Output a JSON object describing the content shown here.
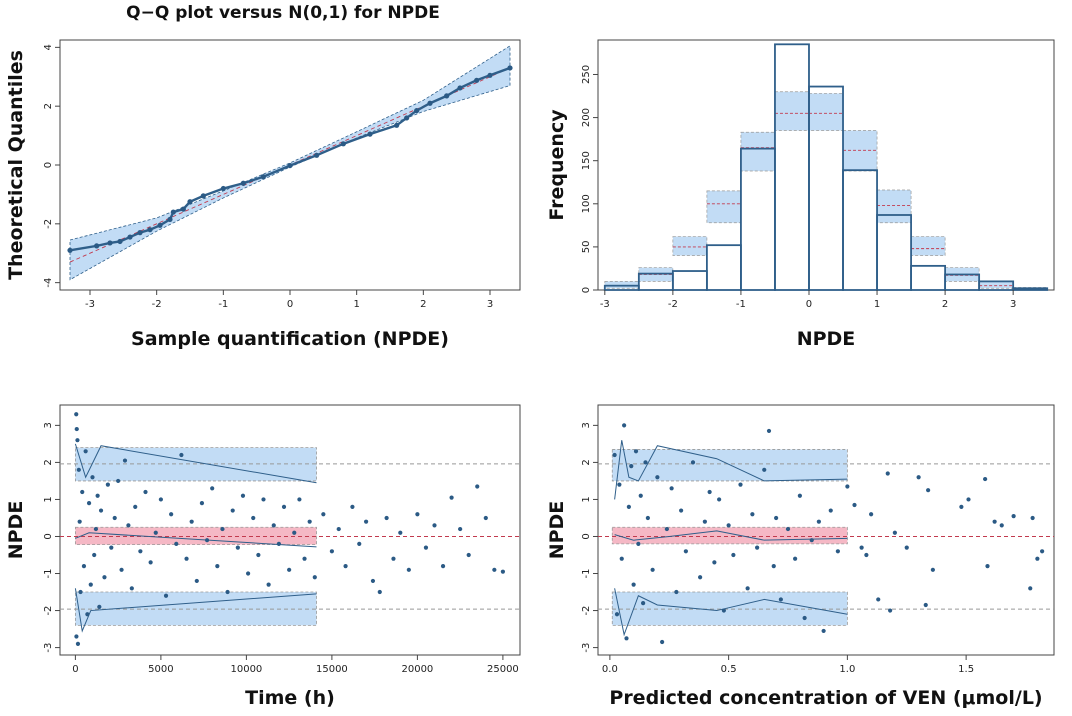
{
  "colors": {
    "point": "#2b5a85",
    "line": "#2f5f8a",
    "band_blue": "#c2dcf5",
    "band_red": "#f5b8c5",
    "dash_red": "#c23a4e",
    "grid": "#999999"
  },
  "chart_data": [
    {
      "id": "qq",
      "type": "scatter",
      "title": "Q−Q plot versus N(0,1) for NPDE",
      "xlabel": "Sample quantification (NPDE)",
      "ylabel": "Theoretical Quantiles",
      "xlim": [
        -3.45,
        3.45
      ],
      "ylim": [
        -4.25,
        4.25
      ],
      "xticks": [
        -3,
        -2,
        -1,
        0,
        1,
        2,
        3
      ],
      "yticks": [
        -4,
        -2,
        0,
        2,
        4
      ],
      "band": {
        "x": [
          -3.3,
          -2.0,
          -1.0,
          0.0,
          1.0,
          2.0,
          3.3
        ],
        "lower": [
          -3.9,
          -2.25,
          -1.12,
          -0.07,
          0.92,
          1.82,
          2.7
        ],
        "upper": [
          -2.55,
          -1.8,
          -0.88,
          0.07,
          1.13,
          2.2,
          4.05
        ]
      },
      "points": [
        [
          -3.3,
          -2.9
        ],
        [
          -2.9,
          -2.75
        ],
        [
          -2.7,
          -2.65
        ],
        [
          -2.55,
          -2.6
        ],
        [
          -2.4,
          -2.45
        ],
        [
          -2.25,
          -2.3
        ],
        [
          -2.1,
          -2.2
        ],
        [
          -1.95,
          -2.05
        ],
        [
          -1.8,
          -1.85
        ],
        [
          -1.75,
          -1.6
        ],
        [
          -1.6,
          -1.5
        ],
        [
          -1.5,
          -1.25
        ],
        [
          -1.3,
          -1.05
        ],
        [
          -1.0,
          -0.8
        ],
        [
          -0.7,
          -0.62
        ],
        [
          -0.4,
          -0.4
        ],
        [
          0.0,
          -0.02
        ],
        [
          0.4,
          0.33
        ],
        [
          0.8,
          0.72
        ],
        [
          1.2,
          1.05
        ],
        [
          1.6,
          1.35
        ],
        [
          1.75,
          1.6
        ],
        [
          1.9,
          1.85
        ],
        [
          2.1,
          2.1
        ],
        [
          2.35,
          2.35
        ],
        [
          2.55,
          2.62
        ],
        [
          2.8,
          2.88
        ],
        [
          3.0,
          3.05
        ],
        [
          3.3,
          3.3
        ]
      ]
    },
    {
      "id": "hist",
      "type": "bar",
      "xlabel": "NPDE",
      "ylabel": "Frequency",
      "xlim": [
        -3.1,
        3.6
      ],
      "ylim": [
        0,
        290
      ],
      "xticks": [
        -3,
        -2,
        -1,
        0,
        1,
        2,
        3
      ],
      "yticks": [
        0,
        50,
        100,
        150,
        200,
        250
      ],
      "bin_edges": [
        -3,
        -2.5,
        -2,
        -1.5,
        -1,
        -0.5,
        0,
        0.5,
        1,
        1.5,
        2,
        2.5,
        3,
        3.5
      ],
      "observed": [
        5,
        19,
        22,
        52,
        164,
        285,
        236,
        139,
        87,
        28,
        18,
        10,
        2
      ],
      "pi_lower": [
        2,
        10,
        40,
        78,
        138,
        185,
        185,
        138,
        78,
        40,
        10,
        2,
        0
      ],
      "pi_median": [
        5,
        18,
        50,
        100,
        165,
        205,
        205,
        162,
        98,
        48,
        17,
        5,
        1
      ],
      "pi_upper": [
        10,
        26,
        62,
        115,
        183,
        230,
        228,
        185,
        116,
        62,
        26,
        10,
        3
      ]
    },
    {
      "id": "time",
      "type": "scatter",
      "xlabel": "Time (h)",
      "ylabel": "NPDE",
      "xlim": [
        -900,
        26000
      ],
      "ylim": [
        -3.2,
        3.55
      ],
      "xticks": [
        0,
        5000,
        10000,
        15000,
        20000,
        25000
      ],
      "yticks": [
        -3,
        -2,
        -1,
        0,
        1,
        2,
        3
      ],
      "ref_lines": [
        -1.96,
        0,
        1.96
      ],
      "bands": [
        {
          "color": "blue",
          "x": [
            0,
            14100
          ],
          "lower": [
            1.5,
            1.5
          ],
          "upper": [
            2.4,
            2.4
          ]
        },
        {
          "color": "red",
          "x": [
            0,
            14100
          ],
          "lower": [
            -0.22,
            -0.22
          ],
          "upper": [
            0.25,
            0.25
          ]
        },
        {
          "color": "blue",
          "x": [
            0,
            14100
          ],
          "lower": [
            -2.4,
            -2.4
          ],
          "upper": [
            -1.5,
            -1.5
          ]
        }
      ],
      "median_lines": [
        {
          "x": [
            0,
            600,
            1500,
            14100
          ],
          "y": [
            2.5,
            1.6,
            2.45,
            1.45
          ]
        },
        {
          "x": [
            0,
            800,
            14100
          ],
          "y": [
            -0.05,
            0.1,
            -0.28
          ]
        },
        {
          "x": [
            0,
            400,
            900,
            14100
          ],
          "y": [
            -1.4,
            -2.55,
            -2.0,
            -1.55
          ]
        }
      ],
      "points": [
        [
          50,
          3.3
        ],
        [
          80,
          2.9
        ],
        [
          120,
          2.6
        ],
        [
          150,
          -2.9
        ],
        [
          60,
          -2.7
        ],
        [
          200,
          1.8
        ],
        [
          300,
          -1.5
        ],
        [
          250,
          0.4
        ],
        [
          400,
          1.2
        ],
        [
          500,
          -0.8
        ],
        [
          600,
          2.3
        ],
        [
          700,
          -2.1
        ],
        [
          800,
          0.9
        ],
        [
          900,
          -1.3
        ],
        [
          1000,
          1.6
        ],
        [
          1100,
          -0.5
        ],
        [
          1200,
          0.2
        ],
        [
          1300,
          1.1
        ],
        [
          1400,
          -1.9
        ],
        [
          1500,
          0.7
        ],
        [
          1700,
          -1.1
        ],
        [
          1900,
          1.4
        ],
        [
          2100,
          -0.3
        ],
        [
          2300,
          0.5
        ],
        [
          2500,
          1.5
        ],
        [
          2700,
          -0.9
        ],
        [
          2900,
          2.05
        ],
        [
          3100,
          0.3
        ],
        [
          3300,
          -1.4
        ],
        [
          3500,
          0.8
        ],
        [
          3800,
          -0.4
        ],
        [
          4100,
          1.2
        ],
        [
          4400,
          -0.7
        ],
        [
          4700,
          0.1
        ],
        [
          5000,
          1.0
        ],
        [
          5300,
          -1.6
        ],
        [
          5600,
          0.6
        ],
        [
          5900,
          -0.2
        ],
        [
          6200,
          2.2
        ],
        [
          6500,
          -0.6
        ],
        [
          6800,
          0.4
        ],
        [
          7100,
          -1.2
        ],
        [
          7400,
          0.9
        ],
        [
          7700,
          -0.1
        ],
        [
          8000,
          1.3
        ],
        [
          8300,
          -0.8
        ],
        [
          8600,
          0.2
        ],
        [
          8900,
          -1.5
        ],
        [
          9200,
          0.7
        ],
        [
          9500,
          -0.3
        ],
        [
          9800,
          1.1
        ],
        [
          10100,
          -1.0
        ],
        [
          10400,
          0.5
        ],
        [
          10700,
          -0.5
        ],
        [
          11000,
          1.0
        ],
        [
          11300,
          -1.3
        ],
        [
          11600,
          0.3
        ],
        [
          11900,
          -0.2
        ],
        [
          12200,
          0.8
        ],
        [
          12500,
          -0.9
        ],
        [
          12800,
          0.1
        ],
        [
          13100,
          1.0
        ],
        [
          13400,
          -0.6
        ],
        [
          13700,
          0.4
        ],
        [
          14000,
          -1.1
        ],
        [
          14500,
          0.6
        ],
        [
          15000,
          -0.4
        ],
        [
          15400,
          0.2
        ],
        [
          15800,
          -0.8
        ],
        [
          16200,
          0.8
        ],
        [
          16600,
          -0.2
        ],
        [
          17000,
          0.4
        ],
        [
          17400,
          -1.2
        ],
        [
          17800,
          -1.5
        ],
        [
          18200,
          0.5
        ],
        [
          18600,
          -0.6
        ],
        [
          19000,
          0.1
        ],
        [
          19500,
          -0.9
        ],
        [
          20000,
          0.6
        ],
        [
          20500,
          -0.3
        ],
        [
          21000,
          0.3
        ],
        [
          21500,
          -0.8
        ],
        [
          22000,
          1.05
        ],
        [
          22500,
          0.2
        ],
        [
          23000,
          -0.5
        ],
        [
          23500,
          1.35
        ],
        [
          24000,
          0.5
        ],
        [
          24500,
          -0.9
        ],
        [
          25000,
          -0.95
        ]
      ]
    },
    {
      "id": "conc",
      "type": "scatter",
      "xlabel": "Predicted concentration of VEN (μmol/L)",
      "ylabel": "NPDE",
      "xlim": [
        -0.05,
        1.87
      ],
      "ylim": [
        -3.2,
        3.55
      ],
      "xticks": [
        0.0,
        0.5,
        1.0,
        1.5
      ],
      "xtick_labels": [
        "0.0",
        "0.5",
        "1.0",
        "1.5"
      ],
      "yticks": [
        -3,
        -2,
        -1,
        0,
        1,
        2,
        3
      ],
      "ref_lines": [
        -1.96,
        0,
        1.96
      ],
      "bands": [
        {
          "color": "blue",
          "x": [
            0.01,
            1.0
          ],
          "lower": [
            1.5,
            1.5
          ],
          "upper": [
            2.35,
            2.35
          ]
        },
        {
          "color": "red",
          "x": [
            0.01,
            1.0
          ],
          "lower": [
            -0.2,
            -0.2
          ],
          "upper": [
            0.25,
            0.25
          ]
        },
        {
          "color": "blue",
          "x": [
            0.01,
            1.0
          ],
          "lower": [
            -2.4,
            -2.4
          ],
          "upper": [
            -1.5,
            -1.5
          ]
        }
      ],
      "median_lines": [
        {
          "x": [
            0.02,
            0.05,
            0.08,
            0.12,
            0.2,
            0.45,
            0.65,
            1.0
          ],
          "y": [
            1.0,
            2.6,
            1.6,
            1.5,
            2.45,
            2.1,
            1.5,
            1.55
          ]
        },
        {
          "x": [
            0.02,
            0.1,
            0.25,
            0.45,
            0.65,
            1.0
          ],
          "y": [
            0.05,
            -0.1,
            0.0,
            0.15,
            -0.1,
            -0.05
          ]
        },
        {
          "x": [
            0.02,
            0.06,
            0.12,
            0.2,
            0.45,
            0.65,
            1.0
          ],
          "y": [
            -1.4,
            -2.65,
            -1.6,
            -1.85,
            -2.0,
            -1.7,
            -2.1
          ]
        }
      ],
      "points": [
        [
          0.02,
          2.2
        ],
        [
          0.03,
          -2.1
        ],
        [
          0.04,
          1.4
        ],
        [
          0.05,
          -0.6
        ],
        [
          0.06,
          3.0
        ],
        [
          0.07,
          -2.75
        ],
        [
          0.08,
          0.8
        ],
        [
          0.09,
          1.9
        ],
        [
          0.1,
          -1.3
        ],
        [
          0.11,
          2.3
        ],
        [
          0.12,
          -0.2
        ],
        [
          0.13,
          1.1
        ],
        [
          0.14,
          -1.8
        ],
        [
          0.15,
          2.0
        ],
        [
          0.16,
          0.5
        ],
        [
          0.18,
          -0.9
        ],
        [
          0.2,
          1.6
        ],
        [
          0.22,
          -2.85
        ],
        [
          0.24,
          0.2
        ],
        [
          0.26,
          1.3
        ],
        [
          0.28,
          -1.5
        ],
        [
          0.3,
          0.7
        ],
        [
          0.32,
          -0.4
        ],
        [
          0.35,
          2.0
        ],
        [
          0.38,
          -1.1
        ],
        [
          0.4,
          0.4
        ],
        [
          0.42,
          1.2
        ],
        [
          0.44,
          -0.7
        ],
        [
          0.46,
          1.0
        ],
        [
          0.48,
          -2.0
        ],
        [
          0.5,
          0.3
        ],
        [
          0.52,
          -0.5
        ],
        [
          0.55,
          1.4
        ],
        [
          0.58,
          -1.4
        ],
        [
          0.6,
          0.6
        ],
        [
          0.62,
          -0.3
        ],
        [
          0.65,
          1.8
        ],
        [
          0.67,
          2.85
        ],
        [
          0.69,
          -0.8
        ],
        [
          0.7,
          0.5
        ],
        [
          0.72,
          -1.7
        ],
        [
          0.75,
          0.2
        ],
        [
          0.78,
          -0.6
        ],
        [
          0.8,
          1.1
        ],
        [
          0.82,
          -2.2
        ],
        [
          0.85,
          -0.1
        ],
        [
          0.88,
          0.4
        ],
        [
          0.9,
          -2.55
        ],
        [
          0.93,
          0.7
        ],
        [
          0.96,
          -0.4
        ],
        [
          1.0,
          1.35
        ],
        [
          1.03,
          0.85
        ],
        [
          1.06,
          -0.3
        ],
        [
          1.08,
          -0.5
        ],
        [
          1.1,
          0.6
        ],
        [
          1.13,
          -1.7
        ],
        [
          1.17,
          1.7
        ],
        [
          1.18,
          -2.0
        ],
        [
          1.2,
          0.1
        ],
        [
          1.25,
          -0.3
        ],
        [
          1.3,
          1.6
        ],
        [
          1.33,
          -1.85
        ],
        [
          1.34,
          1.25
        ],
        [
          1.36,
          -0.9
        ],
        [
          1.48,
          0.8
        ],
        [
          1.51,
          1.0
        ],
        [
          1.58,
          1.55
        ],
        [
          1.59,
          -0.8
        ],
        [
          1.62,
          0.4
        ],
        [
          1.65,
          0.3
        ],
        [
          1.7,
          0.55
        ],
        [
          1.78,
          0.5
        ],
        [
          1.8,
          -0.6
        ],
        [
          1.82,
          -0.4
        ],
        [
          1.77,
          -1.4
        ]
      ]
    }
  ]
}
